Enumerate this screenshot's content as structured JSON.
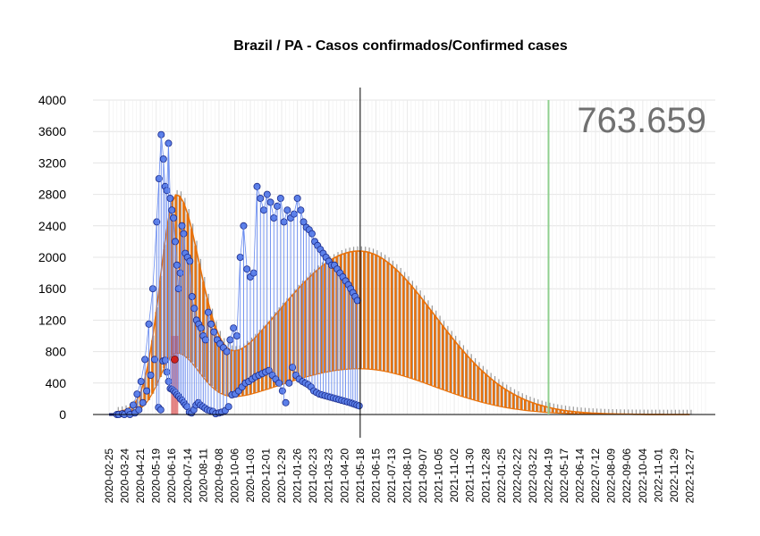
{
  "chart_data": {
    "type": "line",
    "title": "Brazil / PA - Casos confirmados/Confirmed cases",
    "xlabel": "",
    "ylabel": "",
    "ylim": [
      0,
      4000
    ],
    "yticks": [
      "0",
      "400",
      "800",
      "1200",
      "1600",
      "2000",
      "2400",
      "2800",
      "3200",
      "3600",
      "4000"
    ],
    "x_range": [
      "2020-02-25",
      "2023-01-24"
    ],
    "xticks": [
      "2020-02-25",
      "2020-03-24",
      "2020-04-21",
      "2020-05-19",
      "2020-06-16",
      "2020-07-14",
      "2020-08-11",
      "2020-09-08",
      "2020-10-06",
      "2020-11-03",
      "2020-12-01",
      "2020-12-29",
      "2021-01-26",
      "2021-02-23",
      "2021-03-23",
      "2021-04-20",
      "2021-05-18",
      "2021-06-15",
      "2021-07-13",
      "2021-08-10",
      "2021-09-07",
      "2021-10-05",
      "2021-11-02",
      "2021-11-30",
      "2021-12-28",
      "2022-01-25",
      "2022-02-22",
      "2022-03-22",
      "2022-04-19",
      "2022-05-17",
      "2022-06-14",
      "2022-07-12",
      "2022-08-09",
      "2022-09-06",
      "2022-10-04",
      "2022-11-01",
      "2022-11-29",
      "2022-12-27"
    ],
    "total_label": "763.659",
    "today_marker": "2021-05-18",
    "reference_marker": "2022-04-19",
    "highlight_bar": {
      "date": "2020-06-21",
      "value": 700
    },
    "grid": true,
    "series": [
      {
        "role": "observed",
        "style": "points",
        "x": [
          "2020-03-10",
          "2020-03-20",
          "2020-03-30",
          "2020-04-08",
          "2020-04-15",
          "2020-04-22",
          "2020-04-29",
          "2020-05-06",
          "2020-05-13",
          "2020-05-20",
          "2020-05-24",
          "2020-05-28",
          "2020-06-01",
          "2020-06-04",
          "2020-06-07",
          "2020-06-10",
          "2020-06-13",
          "2020-06-16",
          "2020-06-19",
          "2020-06-22",
          "2020-06-25",
          "2020-06-28",
          "2020-07-01",
          "2020-07-04",
          "2020-07-07",
          "2020-07-10",
          "2020-07-14",
          "2020-07-18",
          "2020-07-22",
          "2020-07-26",
          "2020-07-30",
          "2020-08-03",
          "2020-08-07",
          "2020-08-11",
          "2020-08-15",
          "2020-08-20",
          "2020-08-25",
          "2020-08-30",
          "2020-09-05",
          "2020-09-10",
          "2020-09-16",
          "2020-09-22",
          "2020-09-28",
          "2020-10-04",
          "2020-10-10",
          "2020-10-16",
          "2020-10-22",
          "2020-10-28",
          "2020-11-03",
          "2020-11-09",
          "2020-11-15",
          "2020-11-21",
          "2020-11-27",
          "2020-12-03",
          "2020-12-09",
          "2020-12-15",
          "2020-12-21",
          "2020-12-27",
          "2021-01-02",
          "2021-01-08",
          "2021-01-14",
          "2021-01-20",
          "2021-01-26",
          "2021-02-01",
          "2021-02-06",
          "2021-02-11",
          "2021-02-16",
          "2021-02-21",
          "2021-02-26",
          "2021-03-03",
          "2021-03-08",
          "2021-03-13",
          "2021-03-18",
          "2021-03-23",
          "2021-03-28",
          "2021-04-02",
          "2021-04-07",
          "2021-04-12",
          "2021-04-17",
          "2021-04-22",
          "2021-04-27",
          "2021-05-01",
          "2021-05-05",
          "2021-05-09",
          "2021-05-13"
        ],
        "high": [
          0,
          10,
          40,
          120,
          260,
          420,
          700,
          1150,
          1600,
          2450,
          3000,
          3560,
          3250,
          2900,
          2850,
          3450,
          2750,
          2600,
          2500,
          2200,
          1900,
          1600,
          1800,
          2400,
          2300,
          2050,
          2000,
          1950,
          1500,
          1350,
          1200,
          1150,
          1100,
          1000,
          950,
          1300,
          1150,
          1050,
          950,
          900,
          850,
          800,
          950,
          1100,
          1000,
          2000,
          2400,
          1850,
          1750,
          1800,
          2900,
          2750,
          2600,
          2800,
          2700,
          2500,
          2650,
          2750,
          2450,
          2600,
          2500,
          2550,
          2750,
          2600,
          2450,
          2380,
          2350,
          2300,
          2200,
          2150,
          2100,
          2050,
          2000,
          1950,
          1900,
          1900,
          1850,
          1800,
          1750,
          1700,
          1650,
          1600,
          1550,
          1500,
          1450
        ],
        "low": [
          0,
          0,
          0,
          20,
          60,
          150,
          300,
          500,
          700,
          90,
          60,
          680,
          690,
          540,
          420,
          330,
          320,
          300,
          280,
          250,
          230,
          200,
          180,
          150,
          120,
          100,
          30,
          20,
          60,
          120,
          150,
          120,
          100,
          80,
          60,
          50,
          40,
          10,
          20,
          30,
          50,
          100,
          250,
          260,
          300,
          350,
          400,
          420,
          450,
          480,
          500,
          520,
          540,
          560,
          500,
          450,
          400,
          300,
          150,
          400,
          600,
          500,
          450,
          420,
          400,
          380,
          350,
          300,
          280,
          260,
          250,
          240,
          230,
          220,
          210,
          200,
          190,
          180,
          170,
          160,
          150,
          140,
          130,
          120,
          110
        ]
      },
      {
        "role": "fitted",
        "style": "oscillating",
        "peak1": {
          "date": "2020-06-23",
          "value": 2600
        },
        "peak2": {
          "date": "2021-05-16",
          "value": 2080
        },
        "tail_end": "2022-12-27"
      }
    ],
    "colors": {
      "observed_fill": "#5b7fe8",
      "observed_stroke": "#1a2a8a",
      "observed_line": "#6a8cf0",
      "fitted": "#e8710a",
      "fitted_shadow": "#9a9a9a",
      "today_line": "#000000",
      "reference_line": "#8fcf8f",
      "highlight": "#d02020",
      "grid": "#e4e4e4"
    }
  }
}
